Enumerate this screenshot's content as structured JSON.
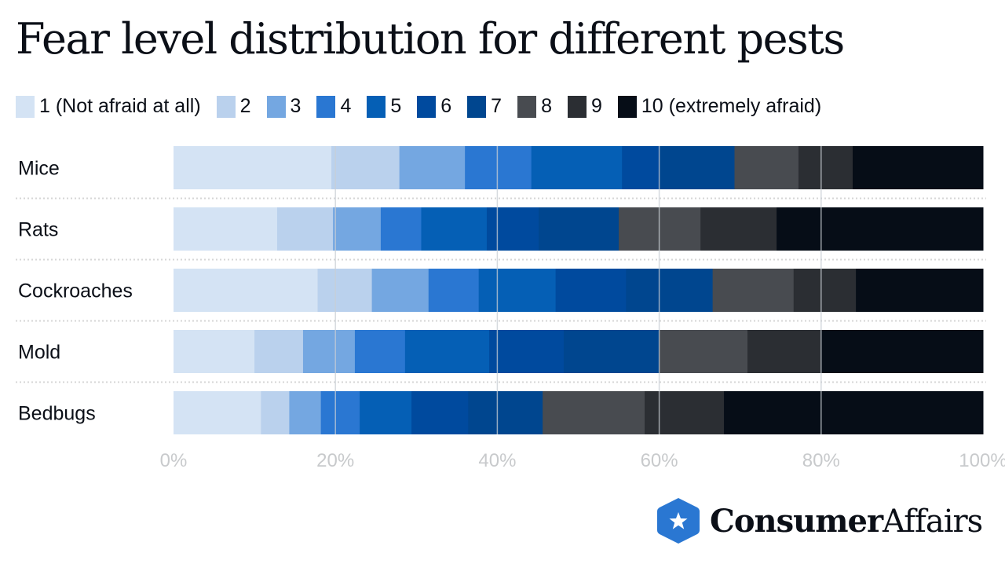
{
  "chart_data": {
    "type": "bar",
    "orientation": "horizontal",
    "stacked": true,
    "title": "Fear level distribution for different pests",
    "categories": [
      "Mice",
      "Rats",
      "Cockroaches",
      "Mold",
      "Bedbugs"
    ],
    "series": [
      {
        "name": "1 (Not afraid at all)",
        "color": "#d4e3f4",
        "values": [
          19.5,
          12.8,
          17.8,
          10.0,
          10.8
        ]
      },
      {
        "name": "2",
        "color": "#bad1ed",
        "values": [
          8.4,
          6.9,
          6.7,
          6.0,
          3.5
        ]
      },
      {
        "name": "3",
        "color": "#74a7e1",
        "values": [
          8.1,
          5.9,
          7.0,
          6.4,
          3.9
        ]
      },
      {
        "name": "4",
        "color": "#2a77d2",
        "values": [
          8.2,
          5.0,
          6.2,
          6.2,
          4.8
        ]
      },
      {
        "name": "5",
        "color": "#055fb5",
        "values": [
          11.2,
          8.1,
          9.5,
          10.4,
          6.4
        ]
      },
      {
        "name": "6",
        "color": "#004a9e",
        "values": [
          4.6,
          6.4,
          8.7,
          9.2,
          7.0
        ]
      },
      {
        "name": "7",
        "color": "#00468f",
        "values": [
          9.3,
          9.9,
          10.7,
          11.8,
          9.2
        ]
      },
      {
        "name": "8",
        "color": "#484b50",
        "values": [
          7.9,
          10.1,
          10.0,
          10.9,
          12.6
        ]
      },
      {
        "name": "9",
        "color": "#2b2e33",
        "values": [
          6.7,
          9.4,
          7.7,
          9.1,
          9.8
        ]
      },
      {
        "name": "10 (extremely afraid)",
        "color": "#060d17",
        "values": [
          16.1,
          25.5,
          15.7,
          20.0,
          32.0
        ]
      }
    ],
    "xlim": [
      0,
      100
    ],
    "xticks": [
      "0%",
      "20%",
      "40%",
      "60%",
      "80%",
      "100%"
    ],
    "xlabel": "",
    "ylabel": "",
    "grid": true,
    "legend_position": "top"
  },
  "branding": {
    "logo_bold": "Consumer",
    "logo_regular": "Affairs",
    "logo_icon": "star-hexagon-icon",
    "logo_color": "#2a77d2"
  }
}
